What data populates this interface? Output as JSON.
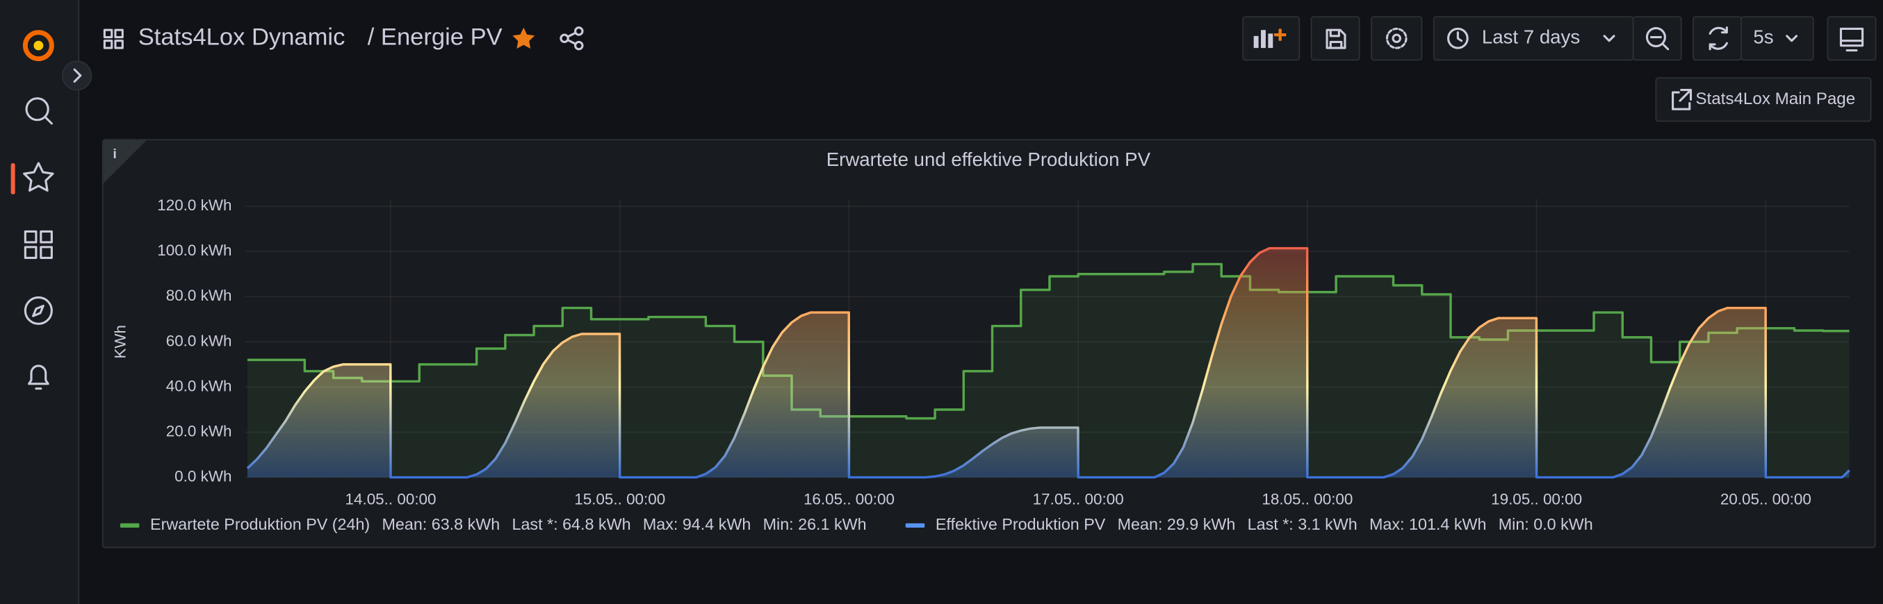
{
  "header": {
    "title": "Stats4Lox Dynamic",
    "subtitle": "/ Energie PV"
  },
  "toolbar": {
    "time_range": "Last 7 days",
    "refresh": "5s"
  },
  "links": [
    "Stats4Lox Main Page"
  ],
  "chart_data": {
    "type": "line",
    "title": "Erwartete und effektive Produktion PV",
    "y_label": "KWh",
    "grid": true,
    "ylim": [
      0,
      120
    ],
    "yticks": [
      {
        "value": 0,
        "label": "0.0 kWh"
      },
      {
        "value": 20,
        "label": "20.0 kWh"
      },
      {
        "value": 40,
        "label": "40.0 kWh"
      },
      {
        "value": 60,
        "label": "60.0 kWh"
      },
      {
        "value": 80,
        "label": "80.0 kWh"
      },
      {
        "value": 100,
        "label": "100.0 kWh"
      },
      {
        "value": 120,
        "label": "120.0 kWh"
      }
    ],
    "xlim": [
      "13.05. 08:45",
      "20.05. 08:45"
    ],
    "xticks": [
      {
        "value": "14.05. 00:00",
        "label": "14.05.. 00:00"
      },
      {
        "value": "15.05. 00:00",
        "label": "15.05.. 00:00"
      },
      {
        "value": "16.05. 00:00",
        "label": "16.05.. 00:00"
      },
      {
        "value": "17.05. 00:00",
        "label": "17.05.. 00:00"
      },
      {
        "value": "18.05. 00:00",
        "label": "18.05.. 00:00"
      },
      {
        "value": "19.05. 00:00",
        "label": "19.05.. 00:00"
      },
      {
        "value": "20.05. 00:00",
        "label": "20.05.. 00:00"
      }
    ],
    "series": [
      {
        "name": "Erwartete Produktion PV (24h)",
        "color": "#56a64b",
        "step": true,
        "stats": [
          "Mean: 63.8 kWh",
          "Last *: 64.8 kWh",
          "Max: 94.4 kWh",
          "Min: 26.1 kWh"
        ],
        "x": [
          "13.05. 09:00",
          "13.05. 12:00",
          "13.05. 15:00",
          "13.05. 18:00",
          "13.05. 21:00",
          "14.05. 00:00",
          "14.05. 03:00",
          "14.05. 06:00",
          "14.05. 09:00",
          "14.05. 12:00",
          "14.05. 15:00",
          "14.05. 18:00",
          "14.05. 21:00",
          "15.05. 00:00",
          "15.05. 03:00",
          "15.05. 06:00",
          "15.05. 09:00",
          "15.05. 12:00",
          "15.05. 15:00",
          "15.05. 18:00",
          "15.05. 21:00",
          "16.05. 00:00",
          "16.05. 03:00",
          "16.05. 06:00",
          "16.05. 09:00",
          "16.05. 12:00",
          "16.05. 15:00",
          "16.05. 18:00",
          "16.05. 21:00",
          "17.05. 00:00",
          "17.05. 03:00",
          "17.05. 06:00",
          "17.05. 09:00",
          "17.05. 12:00",
          "17.05. 15:00",
          "17.05. 18:00",
          "17.05. 21:00",
          "18.05. 00:00",
          "18.05. 03:00",
          "18.05. 06:00",
          "18.05. 09:00",
          "18.05. 12:00",
          "18.05. 15:00",
          "18.05. 18:00",
          "18.05. 21:00",
          "19.05. 00:00",
          "19.05. 03:00",
          "19.05. 06:00",
          "19.05. 09:00",
          "19.05. 12:00",
          "19.05. 15:00",
          "19.05. 18:00",
          "19.05. 21:00",
          "20.05. 00:00",
          "20.05. 03:00",
          "20.05. 06:00"
        ],
        "values": [
          52,
          52,
          47,
          44,
          42.5,
          42.5,
          50,
          50,
          57,
          63,
          67,
          75,
          70,
          70,
          71,
          71,
          67,
          60,
          45,
          30,
          27,
          27,
          27,
          26.1,
          30,
          47,
          67,
          83,
          89,
          90,
          90,
          90,
          91,
          94.4,
          89,
          83,
          82,
          82,
          89,
          89,
          85,
          81,
          62,
          61,
          65,
          65,
          65,
          73,
          62,
          51,
          60,
          64,
          66,
          66,
          65,
          64.8
        ]
      },
      {
        "name": "Effektive Produktion PV",
        "color": "#5794f2",
        "color_scheme": [
          "#3d71d9",
          "#fff1a8",
          "#ff9a52",
          "#e02f44"
        ],
        "stats": [
          "Mean: 29.9 kWh",
          "Last *: 3.1 kWh",
          "Max: 101.4 kWh",
          "Min: 0.0 kWh"
        ],
        "x": [
          "13.05. 09:00",
          "13.05. 10:00",
          "13.05. 11:00",
          "13.05. 12:00",
          "13.05. 13:00",
          "13.05. 14:00",
          "13.05. 15:00",
          "13.05. 16:00",
          "13.05. 17:00",
          "13.05. 18:00",
          "13.05. 19:00",
          "13.05. 23:59",
          "14.05. 00:00",
          "14.05. 08:00",
          "14.05. 09:00",
          "14.05. 10:00",
          "14.05. 11:00",
          "14.05. 12:00",
          "14.05. 13:00",
          "14.05. 14:00",
          "14.05. 15:00",
          "14.05. 16:00",
          "14.05. 17:00",
          "14.05. 18:00",
          "14.05. 19:00",
          "14.05. 20:00",
          "14.05. 23:59",
          "15.05. 00:00",
          "15.05. 08:00",
          "15.05. 09:00",
          "15.05. 10:00",
          "15.05. 11:00",
          "15.05. 12:00",
          "15.05. 13:00",
          "15.05. 14:00",
          "15.05. 15:00",
          "15.05. 16:00",
          "15.05. 17:00",
          "15.05. 18:00",
          "15.05. 19:00",
          "15.05. 20:00",
          "15.05. 23:59",
          "16.05. 00:00",
          "16.05. 08:00",
          "16.05. 09:00",
          "16.05. 10:00",
          "16.05. 11:00",
          "16.05. 12:00",
          "16.05. 13:00",
          "16.05. 14:00",
          "16.05. 15:00",
          "16.05. 16:00",
          "16.05. 17:00",
          "16.05. 18:00",
          "16.05. 19:00",
          "16.05. 20:00",
          "16.05. 23:59",
          "17.05. 00:00",
          "17.05. 08:00",
          "17.05. 09:00",
          "17.05. 10:00",
          "17.05. 11:00",
          "17.05. 12:00",
          "17.05. 13:00",
          "17.05. 14:00",
          "17.05. 15:00",
          "17.05. 16:00",
          "17.05. 17:00",
          "17.05. 18:00",
          "17.05. 19:00",
          "17.05. 20:00",
          "17.05. 23:59",
          "18.05. 00:00",
          "18.05. 08:00",
          "18.05. 09:00",
          "18.05. 10:00",
          "18.05. 11:00",
          "18.05. 12:00",
          "18.05. 13:00",
          "18.05. 14:00",
          "18.05. 15:00",
          "18.05. 16:00",
          "18.05. 17:00",
          "18.05. 18:00",
          "18.05. 19:00",
          "18.05. 20:00",
          "18.05. 23:59",
          "19.05. 00:00",
          "19.05. 08:00",
          "19.05. 09:00",
          "19.05. 10:00",
          "19.05. 11:00",
          "19.05. 12:00",
          "19.05. 13:00",
          "19.05. 14:00",
          "19.05. 15:00",
          "19.05. 16:00",
          "19.05. 17:00",
          "19.05. 18:00",
          "19.05. 19:00",
          "19.05. 20:00",
          "19.05. 23:59",
          "20.05. 00:00",
          "20.05. 08:00",
          "20.05. 08:45"
        ],
        "values": [
          4,
          8,
          13,
          19,
          25,
          32,
          38,
          43,
          47,
          49,
          50,
          50,
          0,
          0,
          1.3,
          3.8,
          8.3,
          15.2,
          24.1,
          33.7,
          42.5,
          50.2,
          55.9,
          59.7,
          62.2,
          63.5,
          63.5,
          0,
          0,
          1.5,
          4.4,
          9.5,
          17.5,
          27.7,
          38.7,
          48.9,
          57.7,
          64.2,
          68.6,
          71.5,
          73,
          73,
          0,
          0,
          0.4,
          1.3,
          2.9,
          5.3,
          8.4,
          11.7,
          14.7,
          17.4,
          19.4,
          20.7,
          21.6,
          22,
          22,
          0,
          0,
          2,
          6.1,
          13.2,
          24.3,
          38.5,
          53.7,
          67.9,
          80.1,
          89.2,
          95.3,
          99.4,
          101.4,
          101.4,
          0,
          0,
          1.4,
          4.2,
          9.2,
          16.9,
          26.8,
          37.4,
          47.2,
          55.7,
          62,
          66.3,
          69.1,
          70.5,
          70.5,
          0,
          0,
          1.5,
          4.5,
          9.8,
          18,
          28.5,
          39.8,
          50.3,
          59.3,
          66,
          70.5,
          73.5,
          75,
          75,
          0,
          0,
          3.1
        ]
      }
    ]
  }
}
